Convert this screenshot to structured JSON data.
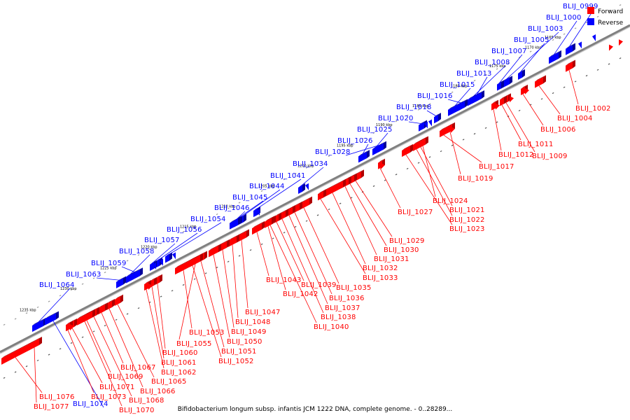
{
  "caption": "Bifidobacterium longum subsp. infantis JCM 1222 DNA, complete genome. - 0..28289...",
  "legend": [
    {
      "label": "Forward",
      "color": "#ff0000"
    },
    {
      "label": "Reverse",
      "color": "#0000ff"
    }
  ],
  "colors": {
    "forward": "#ff0000",
    "reverse": "#0000ff",
    "forward_dark": "#b00000",
    "reverse_dark": "#00009a",
    "axis": "#808080"
  },
  "kbp_ticks": [
    "1165 kbp",
    "1170 kbp",
    "1175 kbp",
    "1180 kbp",
    "1185 kbp",
    "1190 kbp",
    "1195 kbp",
    "1200 kbp",
    "1205 kbp",
    "1210 kbp",
    "1215 kbp",
    "1220 kbp",
    "1225 kbp",
    "1230 kbp",
    "1235 kbp"
  ],
  "reverse_genes": [
    "BLIJ_0999",
    "BLIJ_1000",
    "BLIJ_1003",
    "BLIJ_1005",
    "BLIJ_1007",
    "BLIJ_1008",
    "BLIJ_1013",
    "BLIJ_1015",
    "BLIJ_1016",
    "BLIJ_1018",
    "BLIJ_1020",
    "BLIJ_1025",
    "BLIJ_1026",
    "BLIJ_1028",
    "BLIJ_1034",
    "BLIJ_1041",
    "BLIJ_1044",
    "BLIJ_1045",
    "BLIJ_1046",
    "BLIJ_1054",
    "BLIJ_1056",
    "BLIJ_1057",
    "BLIJ_1058",
    "BLIJ_1059",
    "BLIJ_1063",
    "BLIJ_1064",
    "BLIJ_1074"
  ],
  "forward_genes": [
    "BLIJ_1002",
    "BLIJ_1004",
    "BLIJ_1006",
    "BLIJ_1009",
    "BLIJ_1011",
    "BLIJ_1012",
    "BLIJ_1017",
    "BLIJ_1019",
    "BLIJ_1021",
    "BLIJ_1022",
    "BLIJ_1023",
    "BLIJ_1024",
    "BLIJ_1027",
    "BLIJ_1029",
    "BLIJ_1030",
    "BLIJ_1031",
    "BLIJ_1032",
    "BLIJ_1033",
    "BLIJ_1035",
    "BLIJ_1036",
    "BLIJ_1037",
    "BLIJ_1038",
    "BLIJ_1039",
    "BLIJ_1040",
    "BLIJ_1042",
    "BLIJ_1043",
    "BLIJ_1047",
    "BLIJ_1048",
    "BLIJ_1049",
    "BLIJ_1050",
    "BLIJ_1051",
    "BLIJ_1052",
    "BLIJ_1053",
    "BLIJ_1055",
    "BLIJ_1060",
    "BLIJ_1061",
    "BLIJ_1062",
    "BLIJ_1065",
    "BLIJ_1066",
    "BLIJ_1067",
    "BLIJ_1068",
    "BLIJ_1069",
    "BLIJ_1070",
    "BLIJ_1071",
    "BLIJ_1073",
    "BLIJ_1076",
    "BLIJ_1077"
  ]
}
